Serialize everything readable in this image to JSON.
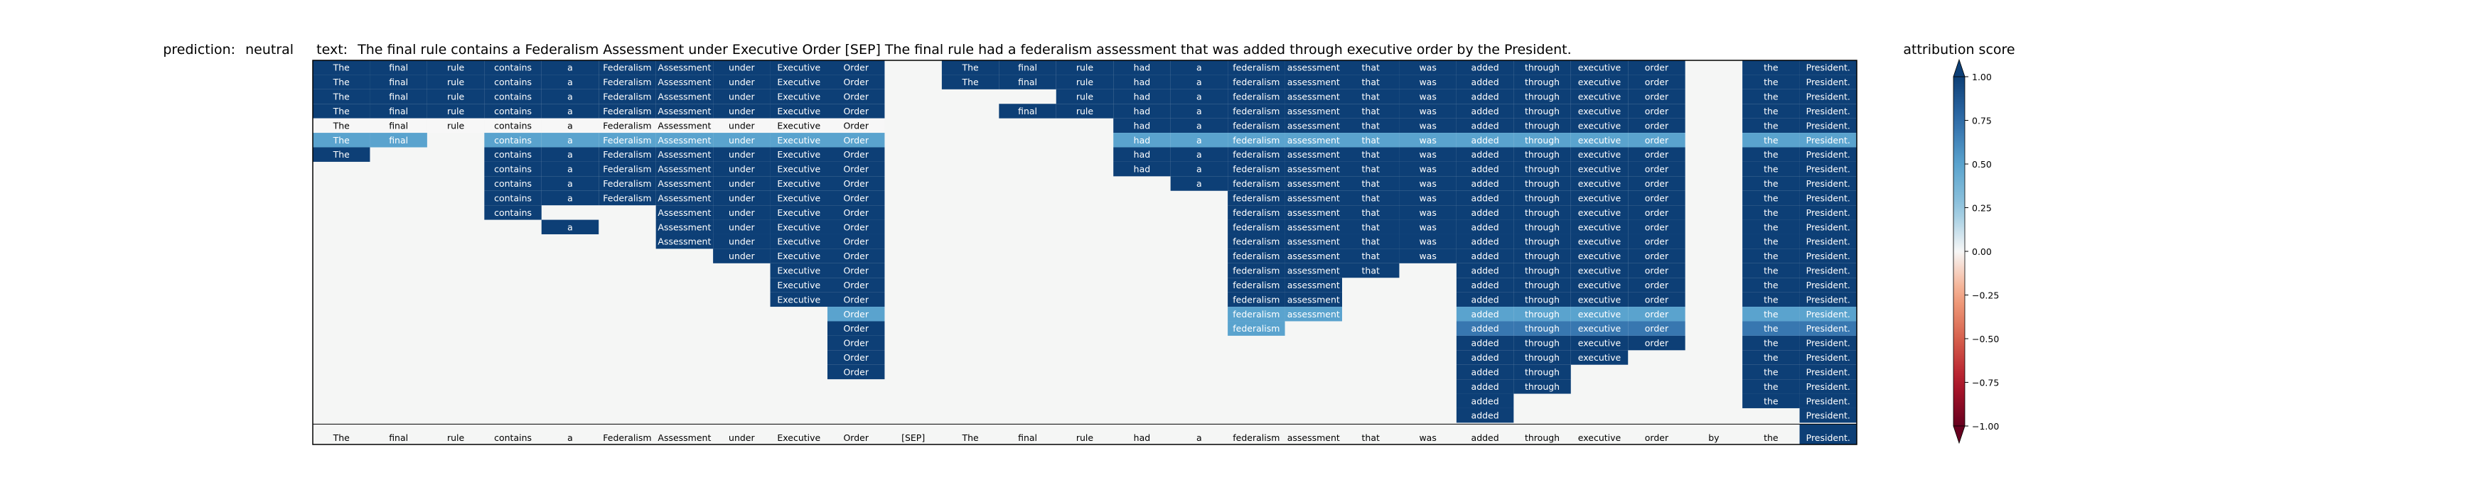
{
  "header": {
    "prediction_label": "prediction:",
    "prediction_value": "neutral",
    "text_label": "text:",
    "text_value": "The final rule contains a Federalism Assessment under Executive Order [SEP] The final rule had a federalism assessment that was added through executive order by the President."
  },
  "colorbar": {
    "title": "attribution score",
    "ticks": [
      "1.00",
      "0.75",
      "0.50",
      "0.25",
      "0.00",
      "−0.25",
      "−0.50",
      "−0.75",
      "−1.00"
    ],
    "colormap": "RdBu",
    "colors": {
      "strong_positive": "#0d3f76",
      "medium_positive": "#5aa3ce",
      "weak_positive": "#2f6ca9",
      "neutral": "#f7f7f7",
      "negative": "#67001f"
    }
  },
  "chart_data": {
    "type": "heatmap",
    "title": "prediction:  neutral     text:  The final rule contains a Federalism Assessment under Executive Order [SEP] The final rule had a federalism assessment that was added through executive order by the President.",
    "x_tick_labels": [
      "The",
      "final",
      "rule",
      "contains",
      "a",
      "Federalism",
      "Assessment",
      "under",
      "Executive",
      "Order",
      "[SEP]",
      "The",
      "final",
      "rule",
      "had",
      "a",
      "federalism",
      "assessment",
      "that",
      "was",
      "added",
      "through",
      "executive",
      "order",
      "by",
      "the",
      "President."
    ],
    "value_range": [
      -1.0,
      1.0
    ],
    "rows": [
      [
        1,
        1,
        1,
        1,
        1,
        1,
        1,
        1,
        1,
        1,
        null,
        1,
        1,
        1,
        1,
        1,
        1,
        1,
        1,
        1,
        1,
        1,
        1,
        1,
        null,
        1,
        1
      ],
      [
        1,
        1,
        1,
        1,
        1,
        1,
        1,
        1,
        1,
        1,
        null,
        1,
        1,
        1,
        1,
        1,
        1,
        1,
        1,
        1,
        1,
        1,
        1,
        1,
        null,
        1,
        1
      ],
      [
        1,
        1,
        1,
        1,
        1,
        1,
        1,
        1,
        1,
        1,
        null,
        null,
        null,
        1,
        1,
        1,
        1,
        1,
        1,
        1,
        1,
        1,
        1,
        1,
        null,
        1,
        1
      ],
      [
        1,
        1,
        1,
        1,
        1,
        1,
        1,
        1,
        1,
        1,
        null,
        null,
        1,
        1,
        1,
        1,
        1,
        1,
        1,
        1,
        1,
        1,
        1,
        1,
        null,
        1,
        1
      ],
      [
        0,
        0,
        0,
        0,
        0,
        0,
        0,
        0,
        0,
        0,
        null,
        null,
        null,
        null,
        1,
        1,
        1,
        1,
        1,
        1,
        1,
        1,
        1,
        1,
        null,
        1,
        1
      ],
      [
        0.5,
        0.5,
        null,
        0.5,
        0.5,
        0.5,
        0.5,
        0.5,
        0.5,
        0.5,
        null,
        null,
        null,
        null,
        0.5,
        0.5,
        0.5,
        0.5,
        0.5,
        0.5,
        0.5,
        0.5,
        0.5,
        0.5,
        null,
        0.5,
        0.5
      ],
      [
        1,
        null,
        null,
        1,
        1,
        1,
        1,
        1,
        1,
        1,
        null,
        null,
        null,
        null,
        1,
        1,
        1,
        1,
        1,
        1,
        1,
        1,
        1,
        1,
        null,
        1,
        1
      ],
      [
        null,
        null,
        null,
        1,
        1,
        1,
        1,
        1,
        1,
        1,
        null,
        null,
        null,
        null,
        1,
        1,
        1,
        1,
        1,
        1,
        1,
        1,
        1,
        1,
        null,
        1,
        1
      ],
      [
        null,
        null,
        null,
        1,
        1,
        1,
        1,
        1,
        1,
        1,
        null,
        null,
        null,
        null,
        null,
        1,
        1,
        1,
        1,
        1,
        1,
        1,
        1,
        1,
        null,
        1,
        1
      ],
      [
        null,
        null,
        null,
        1,
        1,
        1,
        1,
        1,
        1,
        1,
        null,
        null,
        null,
        null,
        null,
        null,
        1,
        1,
        1,
        1,
        1,
        1,
        1,
        1,
        null,
        1,
        1
      ],
      [
        null,
        null,
        null,
        1,
        null,
        null,
        1,
        1,
        1,
        1,
        null,
        null,
        null,
        null,
        null,
        null,
        1,
        1,
        1,
        1,
        1,
        1,
        1,
        1,
        null,
        1,
        1
      ],
      [
        null,
        null,
        null,
        null,
        1,
        null,
        1,
        1,
        1,
        1,
        null,
        null,
        null,
        null,
        null,
        null,
        1,
        1,
        1,
        1,
        1,
        1,
        1,
        1,
        null,
        1,
        1
      ],
      [
        null,
        null,
        null,
        null,
        null,
        null,
        1,
        1,
        1,
        1,
        null,
        null,
        null,
        null,
        null,
        null,
        1,
        1,
        1,
        1,
        1,
        1,
        1,
        1,
        null,
        1,
        1
      ],
      [
        null,
        null,
        null,
        null,
        null,
        null,
        null,
        1,
        1,
        1,
        null,
        null,
        null,
        null,
        null,
        null,
        1,
        1,
        1,
        1,
        1,
        1,
        1,
        1,
        null,
        1,
        1
      ],
      [
        null,
        null,
        null,
        null,
        null,
        null,
        null,
        null,
        1,
        1,
        null,
        null,
        null,
        null,
        null,
        null,
        1,
        1,
        1,
        null,
        1,
        1,
        1,
        1,
        null,
        1,
        1
      ],
      [
        null,
        null,
        null,
        null,
        null,
        null,
        null,
        null,
        1,
        1,
        null,
        null,
        null,
        null,
        null,
        null,
        1,
        1,
        null,
        null,
        1,
        1,
        1,
        1,
        null,
        1,
        1
      ],
      [
        null,
        null,
        null,
        null,
        null,
        null,
        null,
        null,
        1,
        1,
        null,
        null,
        null,
        null,
        null,
        null,
        1,
        1,
        null,
        null,
        1,
        1,
        1,
        1,
        null,
        1,
        1
      ],
      [
        null,
        null,
        null,
        null,
        null,
        null,
        null,
        null,
        null,
        0.5,
        null,
        null,
        null,
        null,
        null,
        null,
        0.5,
        0.5,
        null,
        null,
        0.5,
        0.5,
        0.5,
        0.5,
        null,
        0.5,
        0.5
      ],
      [
        null,
        null,
        null,
        null,
        null,
        null,
        null,
        null,
        null,
        1,
        null,
        null,
        null,
        null,
        null,
        null,
        0.5,
        null,
        null,
        null,
        0.7,
        0.7,
        0.7,
        0.7,
        null,
        0.7,
        0.7
      ],
      [
        null,
        null,
        null,
        null,
        null,
        null,
        null,
        null,
        null,
        1,
        null,
        null,
        null,
        null,
        null,
        null,
        null,
        null,
        null,
        null,
        1,
        1,
        1,
        1,
        null,
        1,
        1
      ],
      [
        null,
        null,
        null,
        null,
        null,
        null,
        null,
        null,
        null,
        1,
        null,
        null,
        null,
        null,
        null,
        null,
        null,
        null,
        null,
        null,
        1,
        1,
        1,
        null,
        null,
        1,
        1
      ],
      [
        null,
        null,
        null,
        null,
        null,
        null,
        null,
        null,
        null,
        1,
        null,
        null,
        null,
        null,
        null,
        null,
        null,
        null,
        null,
        null,
        1,
        1,
        null,
        null,
        null,
        1,
        1
      ],
      [
        null,
        null,
        null,
        null,
        null,
        null,
        null,
        null,
        null,
        null,
        null,
        null,
        null,
        null,
        null,
        null,
        null,
        null,
        null,
        null,
        1,
        1,
        null,
        null,
        null,
        1,
        1
      ],
      [
        null,
        null,
        null,
        null,
        null,
        null,
        null,
        null,
        null,
        null,
        null,
        null,
        null,
        null,
        null,
        null,
        null,
        null,
        null,
        null,
        1,
        null,
        null,
        null,
        null,
        1,
        1
      ],
      [
        null,
        null,
        null,
        null,
        null,
        null,
        null,
        null,
        null,
        null,
        null,
        null,
        null,
        null,
        null,
        null,
        null,
        null,
        null,
        null,
        1,
        null,
        null,
        null,
        null,
        null,
        1
      ]
    ],
    "grid": false,
    "legend": "colorbar-right"
  }
}
